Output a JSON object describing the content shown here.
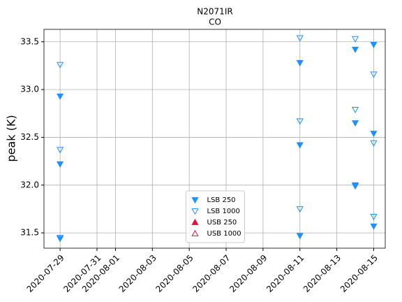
{
  "chart_data": {
    "type": "scatter",
    "title": "N2071IR",
    "subtitle": "CO",
    "ylabel": "peak (K)",
    "xlim": [
      "2020-07-28T03:00",
      "2020-08-15T15:00"
    ],
    "xticks": [
      "2020-07-29",
      "2020-07-31",
      "2020-08-01",
      "2020-08-03",
      "2020-08-05",
      "2020-08-07",
      "2020-08-09",
      "2020-08-11",
      "2020-08-13",
      "2020-08-15"
    ],
    "ylim": [
      31.34,
      33.63
    ],
    "yticks": [
      {
        "value": 31.5,
        "label": "31.5"
      },
      {
        "value": 32,
        "label": "32.0"
      },
      {
        "value": 32.5,
        "label": "32.5"
      },
      {
        "value": 33,
        "label": "33.0"
      },
      {
        "value": 33.5,
        "label": "33.5"
      }
    ],
    "grid": true,
    "legend": "lower center",
    "series": [
      {
        "name": "LSB 250",
        "color": "#1e90ff",
        "marker": "down",
        "filled": true,
        "x": [
          "2020-07-29",
          "2020-07-29",
          "2020-07-29",
          "2020-08-11",
          "2020-08-11",
          "2020-08-11",
          "2020-08-14",
          "2020-08-14",
          "2020-08-14",
          "2020-08-15",
          "2020-08-15",
          "2020-08-15"
        ],
        "values": [
          32.93,
          32.22,
          31.44,
          33.28,
          32.42,
          31.47,
          33.42,
          32.65,
          32.0,
          33.47,
          32.54,
          31.57
        ]
      },
      {
        "name": "LSB 1000",
        "color": "#1e90ff",
        "marker": "down",
        "filled": false,
        "x": [
          "2020-07-29",
          "2020-07-29",
          "2020-07-29",
          "2020-08-11",
          "2020-08-11",
          "2020-08-11",
          "2020-08-14",
          "2020-08-14",
          "2020-08-14",
          "2020-08-15",
          "2020-08-15",
          "2020-08-15"
        ],
        "values": [
          33.26,
          32.37,
          31.45,
          33.54,
          32.67,
          31.75,
          33.53,
          32.79,
          31.99,
          33.16,
          32.44,
          31.67
        ]
      },
      {
        "name": "USB 250",
        "color": "#dc143c",
        "marker": "up",
        "filled": true,
        "x": [],
        "values": []
      },
      {
        "name": "USB 1000",
        "color": "#dc143c",
        "marker": "up",
        "filled": false,
        "x": [],
        "values": []
      }
    ]
  }
}
